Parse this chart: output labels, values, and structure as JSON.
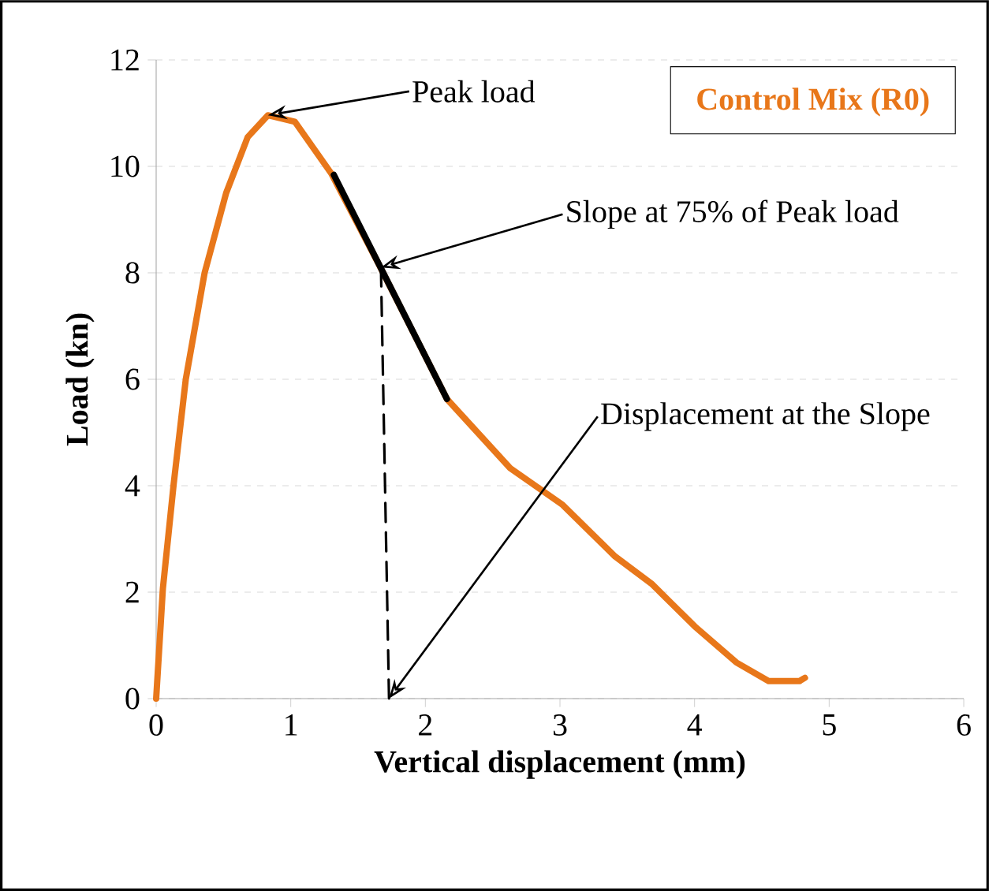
{
  "chart_data": {
    "type": "line",
    "xlabel": "Vertical displacement (mm)",
    "ylabel": "Load (kn)",
    "xlim": [
      0,
      6
    ],
    "xticks": [
      0,
      1,
      2,
      3,
      4,
      5,
      6
    ],
    "ylim": [
      0,
      12
    ],
    "yticks": [
      0,
      2,
      4,
      6,
      8,
      10,
      12
    ],
    "grid": "y",
    "legend": "top right",
    "marker": "none",
    "line_style": "solid",
    "series": [
      {
        "name": "Control Mix (R0)",
        "color": "#e8771a",
        "x": [
          0,
          0.05,
          0.13,
          0.22,
          0.36,
          0.52,
          0.68,
          0.83,
          1.03,
          1.3,
          1.65,
          2.16,
          2.63,
          3.02,
          3.41,
          3.68,
          4.0,
          4.31,
          4.55,
          4.78,
          4.82
        ],
        "values": [
          0,
          2.07,
          4.03,
          6.0,
          8.0,
          9.5,
          10.55,
          10.96,
          10.84,
          9.87,
          8.18,
          5.63,
          4.33,
          3.64,
          2.67,
          2.16,
          1.36,
          0.68,
          0.33,
          0.33,
          0.39
        ]
      },
      {
        "type": "line",
        "color": "#000000",
        "x": [
          1.32,
          2.16
        ],
        "values": [
          9.84,
          5.63
        ]
      },
      {
        "type": "line",
        "color": "#000000",
        "line_style": "dashed",
        "x": [
          1.67,
          1.73
        ],
        "values": [
          8.1,
          0
        ]
      }
    ],
    "annotations": [
      {
        "text": "Peak load",
        "x": 0.83,
        "y": 10.96
      },
      {
        "text": "Slope at 75% of Peak load",
        "x": 1.67,
        "y": 8.1
      },
      {
        "text": "Displacement at the Slope",
        "x": 1.73,
        "y": 0
      }
    ]
  }
}
